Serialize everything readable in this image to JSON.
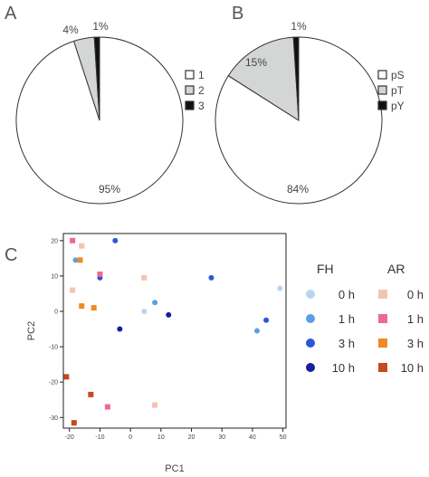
{
  "panels": {
    "a": "A",
    "b": "B",
    "c": "C"
  },
  "chart_data": [
    {
      "type": "pie",
      "panel": "A",
      "slices": [
        {
          "label": "1",
          "value": 95,
          "text": "95%",
          "color": "#ffffff"
        },
        {
          "label": "2",
          "value": 4,
          "text": "4%",
          "color": "#d3d6d4"
        },
        {
          "label": "3",
          "value": 1,
          "text": "1%",
          "color": "#111111"
        }
      ],
      "legend_placement": "right"
    },
    {
      "type": "pie",
      "panel": "B",
      "slices": [
        {
          "label": "pS",
          "value": 84,
          "text": "84%",
          "color": "#ffffff"
        },
        {
          "label": "pT",
          "value": 15,
          "text": "15%",
          "color": "#d3d6d4"
        },
        {
          "label": "pY",
          "value": 1,
          "text": "1%",
          "color": "#111111"
        }
      ],
      "legend_placement": "right"
    },
    {
      "type": "scatter",
      "panel": "C",
      "xlabel": "PC1",
      "ylabel": "PC2",
      "xlim": [
        -22,
        51
      ],
      "ylim": [
        -33,
        22
      ],
      "xticks": [
        -20,
        -10,
        0,
        10,
        20,
        30,
        40,
        50
      ],
      "yticks": [
        -30,
        -20,
        -10,
        0,
        10,
        20
      ],
      "legend_placement": "right",
      "groups": [
        {
          "name": "FH",
          "marker": "circle",
          "series": [
            {
              "name": "0 h",
              "color": "#b7d5f2",
              "points": [
                [
                  -16,
                  18.5
                ],
                [
                  4.5,
                  0
                ],
                [
                  49,
                  6.5
                ]
              ]
            },
            {
              "name": "1 h",
              "color": "#5a9fe2",
              "points": [
                [
                  -18,
                  14.5
                ],
                [
                  8,
                  2.5
                ],
                [
                  41.5,
                  -5.5
                ]
              ]
            },
            {
              "name": "3 h",
              "color": "#2f56d8",
              "points": [
                [
                  -5,
                  20
                ],
                [
                  -10,
                  9.5
                ],
                [
                  26.5,
                  9.5
                ],
                [
                  44.5,
                  -2.5
                ]
              ]
            },
            {
              "name": "10 h",
              "color": "#161f9c",
              "points": [
                [
                  -3.5,
                  -5
                ],
                [
                  12.5,
                  -1
                ]
              ]
            }
          ]
        },
        {
          "name": "AR",
          "marker": "square",
          "series": [
            {
              "name": "0 h",
              "color": "#f3c5b0",
              "points": [
                [
                  -16,
                  18.5
                ],
                [
                  -19,
                  6
                ],
                [
                  4.5,
                  9.5
                ],
                [
                  8,
                  -26.5
                ]
              ]
            },
            {
              "name": "1 h",
              "color": "#ee6a8e",
              "points": [
                [
                  -19,
                  20
                ],
                [
                  -10,
                  10.5
                ],
                [
                  -7.5,
                  -27
                ]
              ]
            },
            {
              "name": "3 h",
              "color": "#f08a24",
              "points": [
                [
                  -16.5,
                  14.5
                ],
                [
                  -16,
                  1.5
                ],
                [
                  -12,
                  1
                ]
              ]
            },
            {
              "name": "10 h",
              "color": "#c54a1c",
              "points": [
                [
                  -21,
                  -18.5
                ],
                [
                  -13,
                  -23.5
                ],
                [
                  -18.5,
                  -31.5
                ]
              ]
            }
          ]
        }
      ]
    }
  ]
}
